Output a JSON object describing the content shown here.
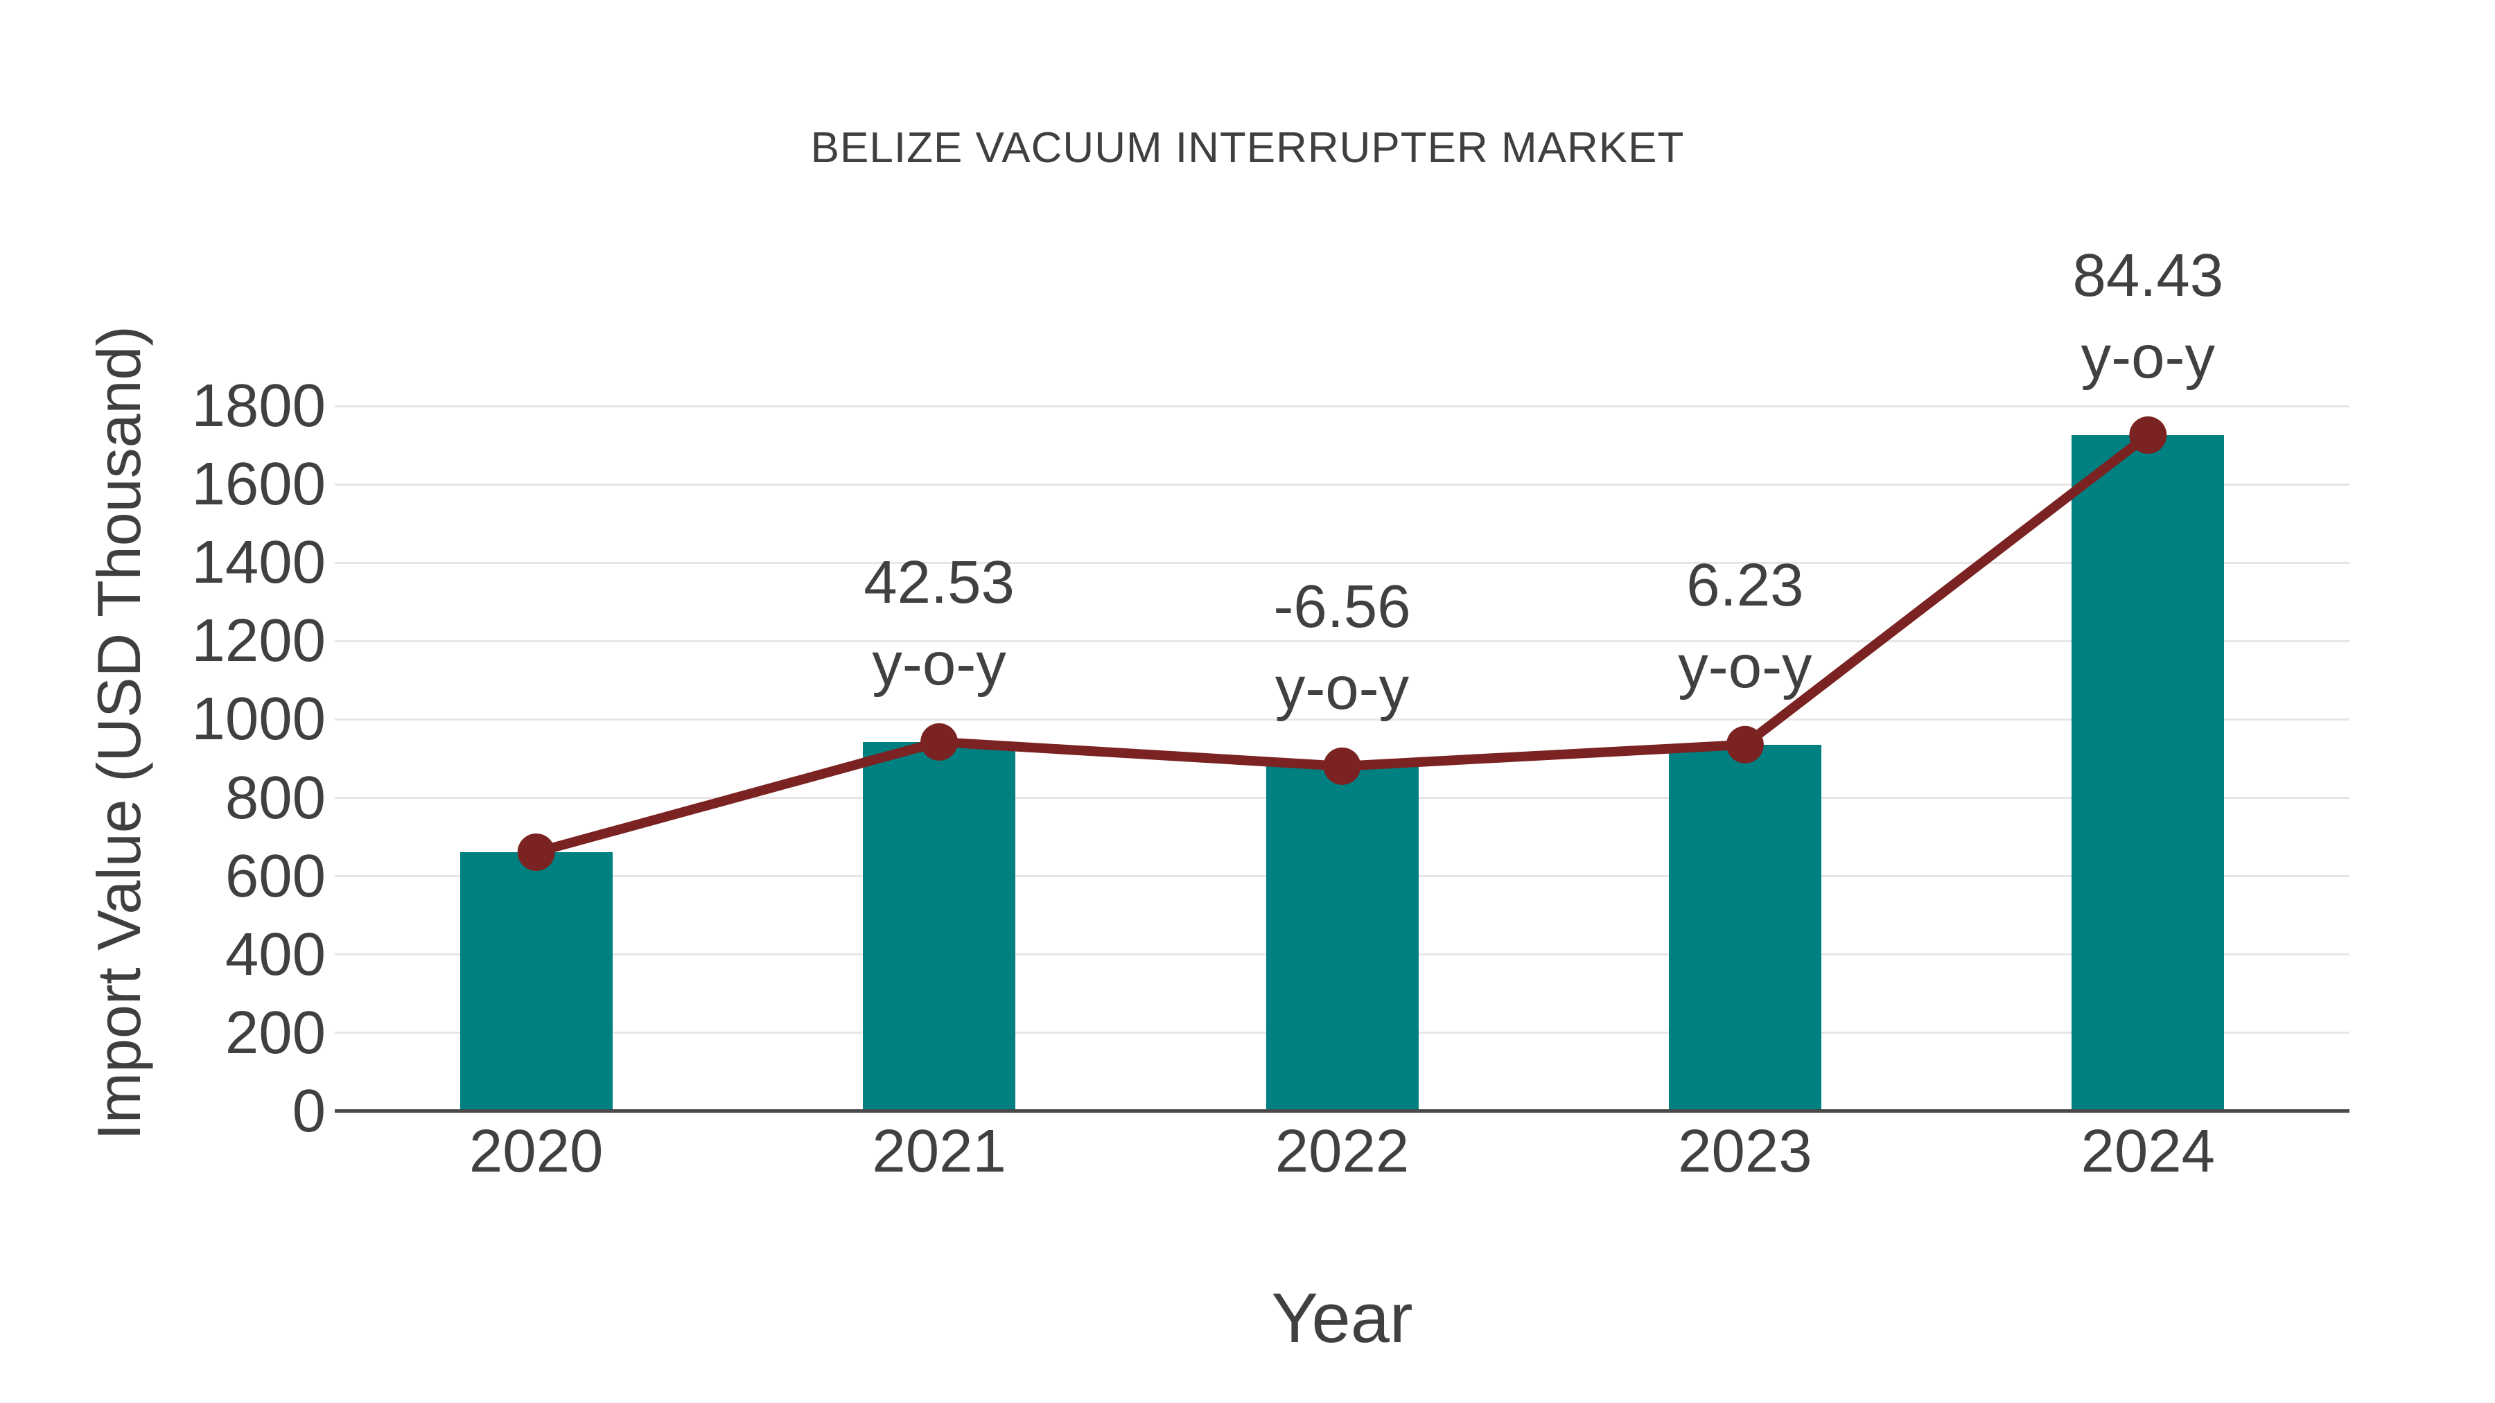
{
  "title": "BELIZE VACUUM INTERRUPTER MARKET",
  "chart_data": {
    "type": "bar",
    "title": "BELIZE VACUUM INTERRUPTER MARKET",
    "xlabel": "Year",
    "ylabel": "Import Value (USD Thousand)",
    "categories": [
      "2020",
      "2021",
      "2022",
      "2023",
      "2024"
    ],
    "series": [
      {
        "name": "Import Value (USD Thousand)",
        "type": "bar",
        "color": "#008080",
        "values": [
          661.3,
          942.6,
          880.8,
          935.7,
          1725.7
        ]
      },
      {
        "name": "y-o-y trend line",
        "type": "line",
        "color": "#7b2222",
        "values": [
          661.3,
          942.6,
          880.8,
          935.7,
          1725.7
        ]
      }
    ],
    "annotations": [
      {
        "category": "2021",
        "value_label": "42.53",
        "suffix_label": "y-o-y"
      },
      {
        "category": "2022",
        "value_label": "-6.56",
        "suffix_label": "y-o-y"
      },
      {
        "category": "2023",
        "value_label": "6.23",
        "suffix_label": "y-o-y"
      },
      {
        "category": "2024",
        "value_label": "84.43",
        "suffix_label": "y-o-y"
      }
    ],
    "ylim": [
      0,
      1800
    ],
    "yticks": [
      0,
      200,
      400,
      600,
      800,
      1000,
      1200,
      1400,
      1600,
      1800
    ],
    "grid": true,
    "legend_position": "none",
    "colors": {
      "bar": "#008080",
      "line": "#7b2222",
      "marker": "#7b2222",
      "text": "#404040",
      "grid": "#e6e6e6",
      "axis": "#4a4a4a",
      "background": "#ffffff"
    }
  }
}
